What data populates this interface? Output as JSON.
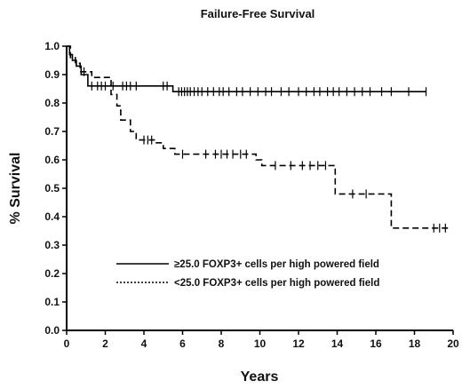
{
  "chart_data": {
    "type": "line",
    "title": "Failure-Free Survival",
    "xlabel": "Years",
    "ylabel": "% Survival",
    "xlim": [
      0,
      20
    ],
    "ylim": [
      0.0,
      1.0
    ],
    "x_ticks": [
      "0",
      "2",
      "4",
      "6",
      "8",
      "10",
      "12",
      "14",
      "16",
      "18",
      "20"
    ],
    "y_ticks": [
      "0.0",
      "0.1",
      "0.2",
      "0.3",
      "0.4",
      "0.5",
      "0.6",
      "0.7",
      "0.8",
      "0.9",
      "1.0"
    ],
    "grid": false,
    "legend_position": "lower-center",
    "series": [
      {
        "name": "≥25.0 FOXP3+ cells per high powered field",
        "style": "solid",
        "color": "#000000",
        "steps": [
          [
            0,
            1.0
          ],
          [
            0.15,
            0.97
          ],
          [
            0.3,
            0.95
          ],
          [
            0.5,
            0.93
          ],
          [
            0.75,
            0.9
          ],
          [
            1.1,
            0.86
          ],
          [
            5.5,
            0.84
          ],
          [
            18.6,
            0.84
          ]
        ],
        "censored": [
          1.3,
          1.6,
          1.8,
          2.0,
          2.4,
          2.9,
          3.1,
          3.3,
          3.6,
          5.0,
          5.2,
          5.8,
          5.95,
          6.1,
          6.25,
          6.4,
          6.6,
          6.8,
          7.0,
          7.3,
          7.6,
          7.9,
          8.1,
          8.4,
          8.8,
          9.1,
          9.5,
          9.9,
          10.3,
          10.6,
          11.1,
          11.5,
          12.0,
          12.4,
          12.8,
          13.1,
          13.5,
          13.8,
          14.1,
          14.5,
          14.9,
          15.3,
          15.7,
          16.3,
          16.8,
          17.7,
          18.6
        ]
      },
      {
        "name": "<25.0 FOXP3+ cells per high powered field",
        "style": "dashed",
        "color": "#000000",
        "steps": [
          [
            0,
            1.0
          ],
          [
            0.2,
            0.96
          ],
          [
            0.45,
            0.94
          ],
          [
            0.7,
            0.91
          ],
          [
            1.3,
            0.89
          ],
          [
            2.3,
            0.83
          ],
          [
            2.6,
            0.79
          ],
          [
            2.8,
            0.74
          ],
          [
            3.3,
            0.7
          ],
          [
            3.6,
            0.67
          ],
          [
            4.6,
            0.66
          ],
          [
            5.0,
            0.64
          ],
          [
            5.6,
            0.62
          ],
          [
            9.8,
            0.6
          ],
          [
            10.1,
            0.58
          ],
          [
            13.9,
            0.48
          ],
          [
            16.8,
            0.36
          ],
          [
            19.8,
            0.36
          ]
        ],
        "censored": [
          0.9,
          4.0,
          4.2,
          4.4,
          6.0,
          7.2,
          7.7,
          8.0,
          8.3,
          8.6,
          9.0,
          9.3,
          10.8,
          11.6,
          12.2,
          12.6,
          13.0,
          13.4,
          14.8,
          15.5,
          19.0,
          19.3,
          19.6
        ]
      }
    ]
  }
}
